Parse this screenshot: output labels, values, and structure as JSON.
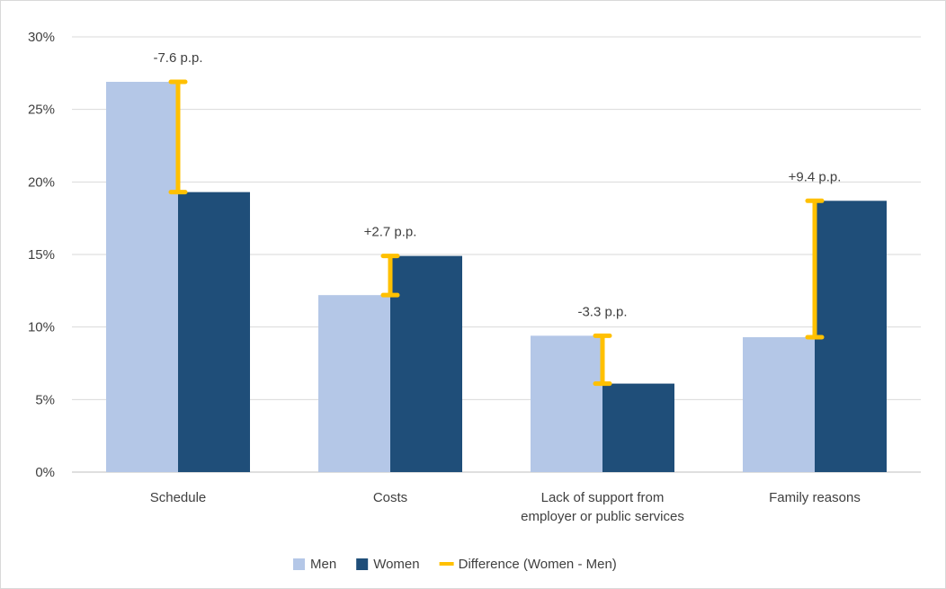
{
  "chart_data": {
    "type": "bar",
    "title": "",
    "xlabel": "",
    "ylabel": "",
    "ylim": [
      0,
      30
    ],
    "y_ticks": [
      0,
      5,
      10,
      15,
      20,
      25,
      30
    ],
    "y_tick_labels": [
      "0%",
      "5%",
      "10%",
      "15%",
      "20%",
      "25%",
      "30%"
    ],
    "grid": true,
    "legend_position": "bottom",
    "categories": [
      [
        "Schedule"
      ],
      [
        "Costs"
      ],
      [
        "Lack of support from",
        "employer or public services"
      ],
      [
        "Family reasons"
      ]
    ],
    "series": [
      {
        "name": "Men",
        "color": "#b4c7e7",
        "values": [
          26.9,
          12.2,
          9.4,
          9.3
        ]
      },
      {
        "name": "Women",
        "color": "#1f4e79",
        "values": [
          19.3,
          14.9,
          6.1,
          18.7
        ]
      }
    ],
    "difference": {
      "name": "Difference (Women - Men)",
      "color": "#ffc000",
      "labels": [
        "-7.6 p.p.",
        "+2.7 p.p.",
        "-3.3 p.p.",
        "+9.4 p.p."
      ]
    }
  }
}
